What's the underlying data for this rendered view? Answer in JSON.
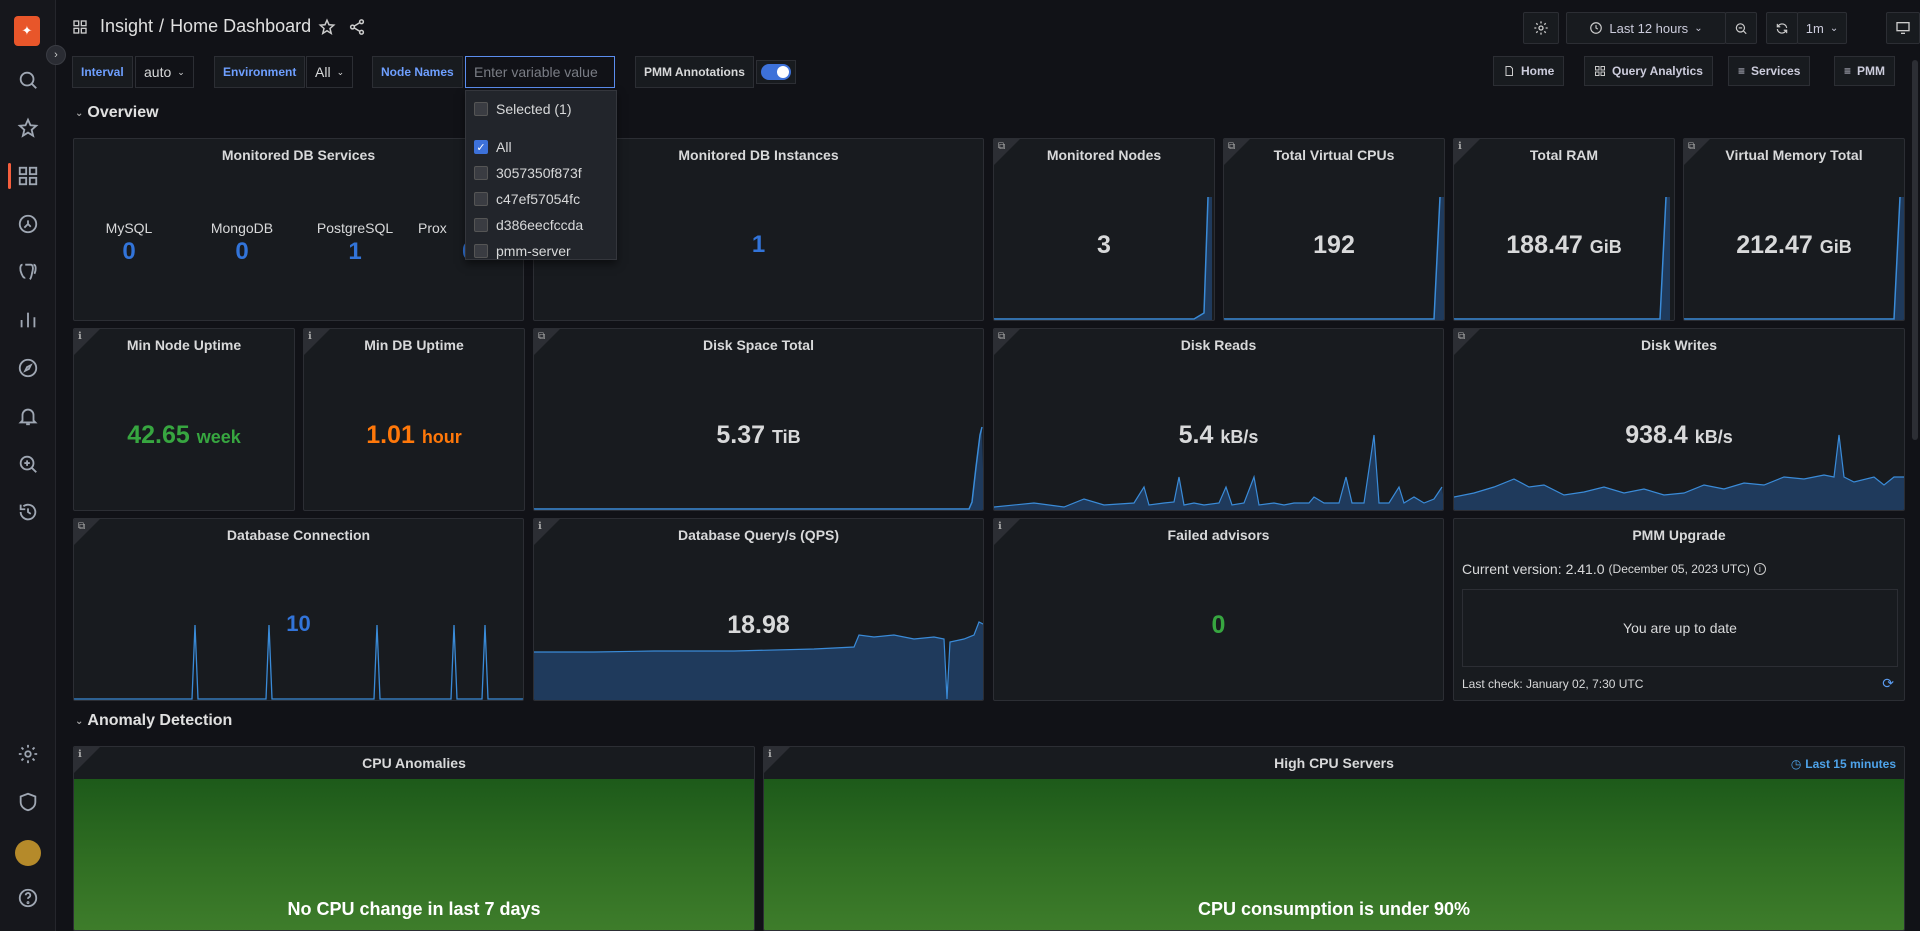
{
  "breadcrumb": {
    "folder": "Insight",
    "separator": "/",
    "title": "Home Dashboard"
  },
  "time": {
    "range": "Last 12 hours",
    "refresh": "1m"
  },
  "variables": {
    "interval": {
      "label": "Interval",
      "value": "auto"
    },
    "environment": {
      "label": "Environment",
      "value": "All"
    },
    "node_names": {
      "label": "Node Names",
      "placeholder": "Enter variable value"
    },
    "annotations": {
      "label": "PMM Annotations"
    }
  },
  "nav_links": [
    "Home",
    "Query Analytics",
    "Services",
    "PMM"
  ],
  "dropdown": {
    "selected_label": "Selected (1)",
    "options": [
      {
        "label": "All",
        "checked": true
      },
      {
        "label": "3057350f873f",
        "checked": false
      },
      {
        "label": "c47ef57054fc",
        "checked": false
      },
      {
        "label": "d386eecfccda",
        "checked": false
      },
      {
        "label": "pmm-server",
        "checked": false
      }
    ]
  },
  "rows": {
    "overview": "Overview",
    "anomaly": "Anomaly Detection"
  },
  "panels": {
    "monitored_db_services": {
      "title": "Monitored DB Services",
      "items": [
        {
          "name": "MySQL",
          "value": "0"
        },
        {
          "name": "MongoDB",
          "value": "0"
        },
        {
          "name": "PostgreSQL",
          "value": "1"
        },
        {
          "name": "Prox",
          "value": "0"
        }
      ]
    },
    "monitored_db_instances": {
      "title": "Monitored DB Instances",
      "value": "1"
    },
    "monitored_nodes": {
      "title": "Monitored Nodes",
      "value": "3"
    },
    "total_vcpus": {
      "title": "Total Virtual CPUs",
      "value": "192"
    },
    "total_ram": {
      "title": "Total RAM",
      "value": "188.47",
      "unit": "GiB"
    },
    "virtual_memory": {
      "title": "Virtual Memory Total",
      "value": "212.47",
      "unit": "GiB"
    },
    "min_node_uptime": {
      "title": "Min Node Uptime",
      "value": "42.65",
      "unit": "week"
    },
    "min_db_uptime": {
      "title": "Min DB Uptime",
      "value": "1.01",
      "unit": "hour"
    },
    "disk_space_total": {
      "title": "Disk Space Total",
      "value": "5.37",
      "unit": "TiB"
    },
    "disk_reads": {
      "title": "Disk Reads",
      "value": "5.4",
      "unit": "kB/s"
    },
    "disk_writes": {
      "title": "Disk Writes",
      "value": "938.4",
      "unit": "kB/s"
    },
    "db_connection": {
      "title": "Database Connection",
      "value": "10"
    },
    "db_qps": {
      "title": "Database Query/s (QPS)",
      "value": "18.98"
    },
    "failed_advisors": {
      "title": "Failed advisors",
      "value": "0"
    },
    "pmm_upgrade": {
      "title": "PMM Upgrade",
      "current_label": "Current version:",
      "version": "2.41.0",
      "date": "(December 05, 2023 UTC)",
      "status": "You are up to date",
      "last_check": "Last check: January 02, 7:30 UTC"
    },
    "cpu_anomalies": {
      "title": "CPU Anomalies",
      "message": "No CPU change in last 7 days"
    },
    "high_cpu": {
      "title": "High CPU Servers",
      "range": "Last 15 minutes",
      "message": "CPU consumption is under 90%"
    }
  },
  "colors": {
    "blue": "#3274d9",
    "green": "#37a640",
    "orange": "#ff780a",
    "accent": "#f55f3e"
  }
}
